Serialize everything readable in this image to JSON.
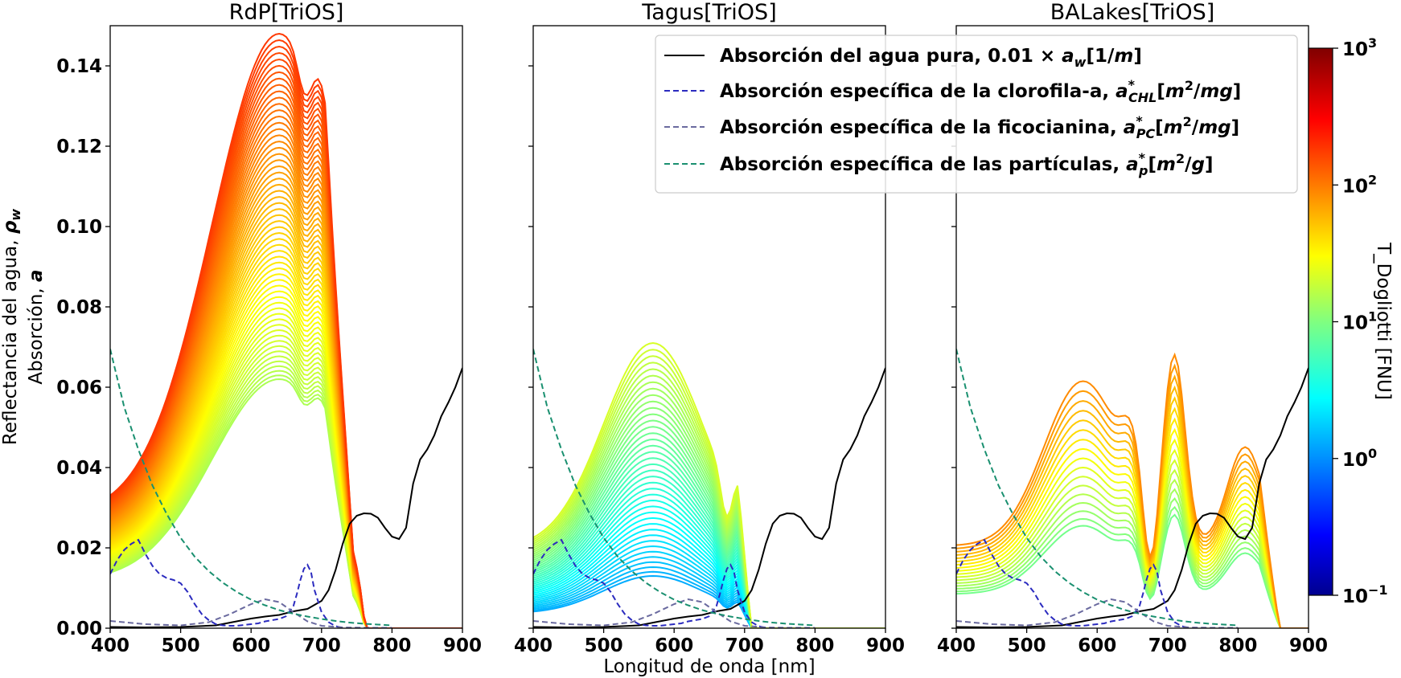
{
  "figure": {
    "xlabel": "Longitud de onda [nm]",
    "ylabel_line1": "Reflectancia del agua, ρ_w",
    "ylabel_line2": "Absorción, a",
    "colorbar_label": "T_Dogliotti [FNU]"
  },
  "colors": {
    "pure_water": "#000000",
    "chl": "#2b2bbf",
    "pc": "#6a6a9f",
    "particles": "#1a9070"
  },
  "colorbar": {
    "scale": "log",
    "range": [
      0.1,
      1000
    ],
    "ticks": [
      {
        "base": "10",
        "exp": "3",
        "value": 1000
      },
      {
        "base": "10",
        "exp": "2",
        "value": 100
      },
      {
        "base": "10",
        "exp": "1",
        "value": 10
      },
      {
        "base": "10",
        "exp": "0",
        "value": 1
      },
      {
        "base": "10",
        "exp": "−1",
        "value": 0.1
      }
    ],
    "colormap": "jet"
  },
  "legend": {
    "placement": "top-right",
    "entries": [
      {
        "text": "Absorción del agua pura, 0.01 × a_w[1/m]",
        "style": "solid",
        "color_key": "pure_water"
      },
      {
        "text": "Absorción específica de la clorofila-a, a*_CHL[m²/mg]",
        "style": "dashed",
        "color_key": "chl"
      },
      {
        "text": "Absorción específica de la ficocianina, a*_PC[m²/mg]",
        "style": "dashed",
        "color_key": "pc"
      },
      {
        "text": "Absorción específica de las partículas, a*_p[m²/g]",
        "style": "dashed",
        "color_key": "particles"
      }
    ]
  },
  "chart_data": [
    {
      "type": "line",
      "title": "RdP[TriOS]",
      "xlabel": "",
      "ylabel": "Reflectancia del agua, ρ_w / Absorción, a",
      "xlim": [
        400,
        900
      ],
      "ylim": [
        0,
        0.15
      ],
      "xticks": [
        400,
        500,
        600,
        700,
        800,
        900
      ],
      "yticks": [
        0.0,
        0.02,
        0.04,
        0.06,
        0.08,
        0.1,
        0.12,
        0.14
      ],
      "ytick_labels": [
        "0.00",
        "0.02",
        "0.04",
        "0.06",
        "0.08",
        "0.10",
        "0.12",
        "0.14"
      ],
      "grid": false,
      "reflectance_family": {
        "spectrum_count": 60,
        "peak_reflectance_range": [
          0.062,
          0.148
        ],
        "turbidity_range_fnu": [
          15,
          190
        ],
        "color_by": "T_Dogliotti (log, jet)"
      },
      "reference_curves": [
        "pure_water",
        "chl",
        "pc",
        "particles"
      ]
    },
    {
      "type": "line",
      "title": "Tagus[TriOS]",
      "xlabel": "Longitud de onda [nm]",
      "ylabel": "",
      "xlim": [
        400,
        900
      ],
      "ylim": [
        0,
        0.15
      ],
      "xticks": [
        400,
        500,
        600,
        700,
        800,
        900
      ],
      "grid": false,
      "reflectance_family": {
        "spectrum_count": 40,
        "peak_reflectance_range": [
          0.013,
          0.071
        ],
        "turbidity_range_fnu": [
          1.5,
          22
        ],
        "color_by": "T_Dogliotti (log, jet)"
      },
      "reference_curves": [
        "pure_water",
        "chl",
        "pc",
        "particles"
      ]
    },
    {
      "type": "line",
      "title": "BALakes[TriOS]",
      "xlabel": "",
      "ylabel": "",
      "xlim": [
        400,
        900
      ],
      "ylim": [
        0,
        0.15
      ],
      "xticks": [
        400,
        500,
        600,
        700,
        800,
        900
      ],
      "grid": false,
      "reflectance_family": {
        "spectrum_count": 17,
        "peak_reflectance_range": [
          0.034,
          0.082
        ],
        "turbidity_range_fnu": [
          9,
          90
        ],
        "color_by": "T_Dogliotti (log, jet)"
      },
      "reference_curves": [
        "pure_water",
        "chl",
        "pc",
        "particles"
      ]
    }
  ],
  "reference_series": {
    "pure_water": {
      "name": "Absorción del agua pura, 0.01 × a_w[1/m]",
      "x": [
        400,
        450,
        500,
        550,
        600,
        620,
        640,
        660,
        680,
        700,
        710,
        720,
        730,
        740,
        750,
        760,
        770,
        780,
        790,
        800,
        810,
        820,
        830,
        840,
        850,
        860,
        870,
        880,
        890,
        900
      ],
      "y": [
        0.0003,
        0.0002,
        0.0003,
        0.0007,
        0.0024,
        0.0029,
        0.0033,
        0.0042,
        0.0048,
        0.0068,
        0.0095,
        0.0145,
        0.021,
        0.026,
        0.028,
        0.0286,
        0.0285,
        0.0275,
        0.025,
        0.0228,
        0.0222,
        0.025,
        0.036,
        0.042,
        0.0445,
        0.048,
        0.0528,
        0.0562,
        0.06,
        0.0648
      ]
    },
    "chl": {
      "name": "Absorción específica de la clorofila-a, a*_CHL[m²/mg]",
      "x": [
        400,
        410,
        420,
        430,
        440,
        450,
        460,
        470,
        480,
        490,
        500,
        510,
        520,
        530,
        540,
        550,
        560,
        570,
        580,
        590,
        600,
        610,
        620,
        630,
        640,
        650,
        660,
        665,
        670,
        675,
        680,
        685,
        690,
        700,
        710,
        720,
        730
      ],
      "y": [
        0.0135,
        0.017,
        0.0195,
        0.021,
        0.022,
        0.0185,
        0.0155,
        0.0135,
        0.0125,
        0.012,
        0.0112,
        0.009,
        0.006,
        0.0035,
        0.002,
        0.001,
        0.0007,
        0.0006,
        0.0006,
        0.0008,
        0.001,
        0.0012,
        0.0017,
        0.002,
        0.0023,
        0.003,
        0.0055,
        0.0085,
        0.012,
        0.0148,
        0.0158,
        0.014,
        0.0095,
        0.004,
        0.0015,
        0.0005,
        0.0001
      ]
    },
    "pc": {
      "name": "Absorción específica de la ficocianina, a*_PC[m²/mg]",
      "x": [
        400,
        450,
        500,
        540,
        570,
        600,
        620,
        640,
        660,
        680,
        700,
        730,
        760,
        800
      ],
      "y": [
        0.0018,
        0.001,
        0.0007,
        0.0015,
        0.0035,
        0.006,
        0.0072,
        0.0065,
        0.004,
        0.0017,
        0.0006,
        0.0002,
        0.0001,
        0.0001
      ]
    },
    "particles": {
      "name": "Absorción específica de las partículas, a*_p[m²/g]",
      "x": [
        400,
        420,
        440,
        460,
        480,
        500,
        520,
        540,
        560,
        580,
        600,
        620,
        640,
        660,
        680,
        700,
        720,
        740,
        760,
        780,
        800
      ],
      "y": [
        0.0695,
        0.055,
        0.0445,
        0.0355,
        0.0285,
        0.0225,
        0.0178,
        0.0142,
        0.0113,
        0.009,
        0.0071,
        0.0057,
        0.0045,
        0.0036,
        0.0029,
        0.0023,
        0.0018,
        0.0014,
        0.0011,
        0.0009,
        0.0007
      ]
    }
  }
}
